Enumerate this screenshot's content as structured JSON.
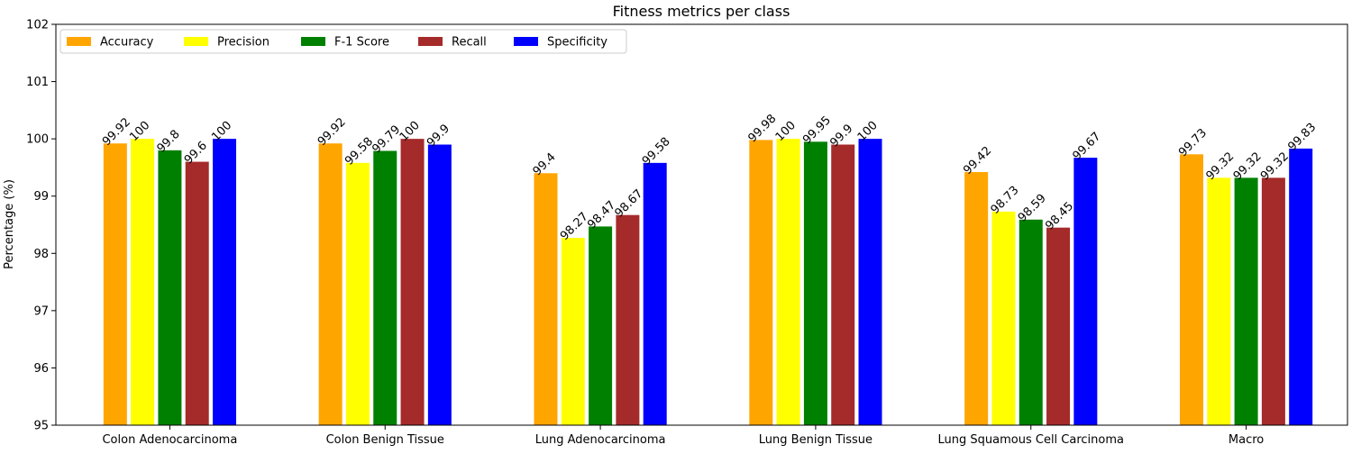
{
  "chart_data": {
    "type": "bar",
    "title": "Fitness metrics per class",
    "xlabel": "",
    "ylabel": "Percentage (%)",
    "ylim": [
      95,
      102
    ],
    "yticks": [
      95,
      96,
      97,
      98,
      99,
      100,
      101,
      102
    ],
    "grid": false,
    "legend_position": "top-left",
    "categories": [
      "Colon Adenocarcinoma",
      "Colon Benign Tissue",
      "Lung Adenocarcinoma",
      "Lung Benign Tissue",
      "Lung Squamous Cell Carcinoma",
      "Macro"
    ],
    "series": [
      {
        "name": "Accuracy",
        "color": "#ffa500",
        "values": [
          99.92,
          99.92,
          99.4,
          99.98,
          99.42,
          99.73
        ]
      },
      {
        "name": "Precision",
        "color": "#ffff00",
        "values": [
          100,
          99.58,
          98.27,
          100,
          98.73,
          99.32
        ]
      },
      {
        "name": "F-1 Score",
        "color": "#008000",
        "values": [
          99.8,
          99.79,
          98.47,
          99.95,
          98.59,
          99.32
        ]
      },
      {
        "name": "Recall",
        "color": "#a52a2a",
        "values": [
          99.6,
          100,
          98.67,
          99.9,
          98.45,
          99.32
        ]
      },
      {
        "name": "Specificity",
        "color": "#0000ff",
        "values": [
          100,
          99.9,
          99.58,
          100,
          99.67,
          99.83
        ]
      }
    ]
  }
}
